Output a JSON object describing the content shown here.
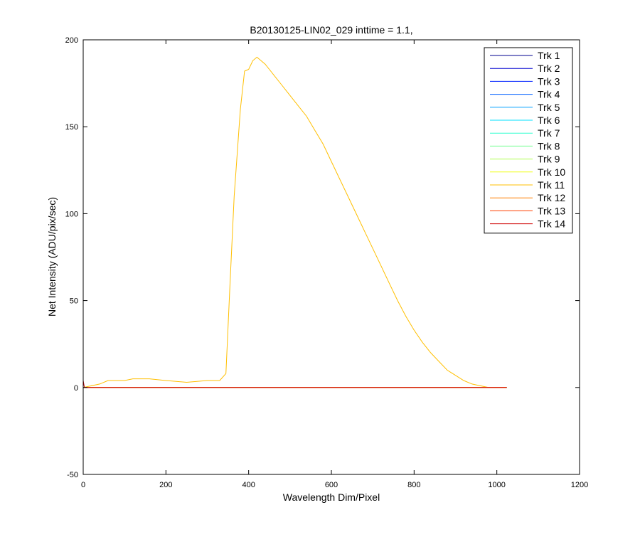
{
  "chart_data": {
    "type": "line",
    "title": "B20130125-LIN02_029 inttime = 1.1,",
    "xlabel": "Wavelength Dim/Pixel",
    "ylabel": "Net Intensity (ADU/pix/sec)",
    "xlim": [
      0,
      1200
    ],
    "ylim": [
      -50,
      200
    ],
    "xticks": [
      0,
      200,
      400,
      600,
      800,
      1000,
      1200
    ],
    "yticks": [
      -50,
      0,
      50,
      100,
      150,
      200
    ],
    "grid": false,
    "legend_position": "top-right",
    "series": [
      {
        "name": "Trk 1",
        "color": "#00008f",
        "points": [
          [
            0,
            0
          ],
          [
            1024,
            0
          ]
        ]
      },
      {
        "name": "Trk 2",
        "color": "#0000cf",
        "points": [
          [
            0,
            0
          ],
          [
            1024,
            0
          ]
        ]
      },
      {
        "name": "Trk 3",
        "color": "#0020ff",
        "points": [
          [
            0,
            0
          ],
          [
            1024,
            0
          ]
        ]
      },
      {
        "name": "Trk 4",
        "color": "#0060ff",
        "points": [
          [
            0,
            0
          ],
          [
            1024,
            0
          ]
        ]
      },
      {
        "name": "Trk 5",
        "color": "#00a0ff",
        "points": [
          [
            0,
            0
          ],
          [
            1024,
            0
          ]
        ]
      },
      {
        "name": "Trk 6",
        "color": "#00e0ff",
        "points": [
          [
            0,
            0
          ],
          [
            1024,
            0
          ]
        ]
      },
      {
        "name": "Trk 7",
        "color": "#30ffcf",
        "points": [
          [
            0,
            0
          ],
          [
            1024,
            0
          ]
        ]
      },
      {
        "name": "Trk 8",
        "color": "#70ff8f",
        "points": [
          [
            0,
            0
          ],
          [
            1024,
            0
          ]
        ]
      },
      {
        "name": "Trk 9",
        "color": "#afff50",
        "points": [
          [
            0,
            0
          ],
          [
            1024,
            0
          ]
        ]
      },
      {
        "name": "Trk 10",
        "color": "#efff10",
        "points": [
          [
            0,
            0
          ],
          [
            1024,
            0
          ]
        ]
      },
      {
        "name": "Trk 11",
        "color": "#ffbf00",
        "points": [
          [
            0,
            0
          ],
          [
            40,
            2
          ],
          [
            60,
            4
          ],
          [
            100,
            4
          ],
          [
            120,
            5
          ],
          [
            160,
            5
          ],
          [
            200,
            4
          ],
          [
            250,
            3
          ],
          [
            300,
            4
          ],
          [
            330,
            4
          ],
          [
            345,
            8
          ],
          [
            355,
            60
          ],
          [
            365,
            110
          ],
          [
            380,
            160
          ],
          [
            390,
            182
          ],
          [
            400,
            183
          ],
          [
            410,
            188
          ],
          [
            420,
            190
          ],
          [
            440,
            186
          ],
          [
            460,
            180
          ],
          [
            480,
            174
          ],
          [
            500,
            168
          ],
          [
            520,
            162
          ],
          [
            540,
            156
          ],
          [
            560,
            148
          ],
          [
            580,
            140
          ],
          [
            600,
            130
          ],
          [
            620,
            120
          ],
          [
            640,
            110
          ],
          [
            660,
            100
          ],
          [
            680,
            90
          ],
          [
            700,
            80
          ],
          [
            720,
            70
          ],
          [
            740,
            60
          ],
          [
            760,
            50
          ],
          [
            780,
            41
          ],
          [
            800,
            33
          ],
          [
            820,
            26
          ],
          [
            840,
            20
          ],
          [
            860,
            15
          ],
          [
            880,
            10
          ],
          [
            900,
            7
          ],
          [
            920,
            4
          ],
          [
            940,
            2
          ],
          [
            960,
            1
          ],
          [
            980,
            0
          ],
          [
            1024,
            0
          ]
        ]
      },
      {
        "name": "Trk 12",
        "color": "#ff7f00",
        "points": [
          [
            0,
            0
          ],
          [
            1024,
            0
          ]
        ]
      },
      {
        "name": "Trk 13",
        "color": "#ff3f00",
        "points": [
          [
            0,
            0
          ],
          [
            1024,
            0
          ]
        ]
      },
      {
        "name": "Trk 14",
        "color": "#cf0000",
        "points": [
          [
            0,
            4
          ],
          [
            3,
            0
          ],
          [
            1024,
            0
          ]
        ]
      }
    ]
  }
}
